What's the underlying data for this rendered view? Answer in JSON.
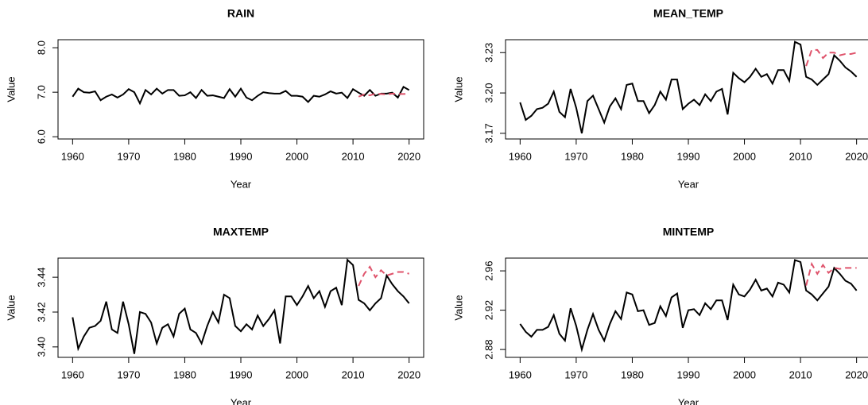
{
  "chart_data": [
    {
      "type": "line",
      "title": "RAIN",
      "xlabel": "Year",
      "ylabel": "Value",
      "x": [
        1960,
        1961,
        1962,
        1963,
        1964,
        1965,
        1966,
        1967,
        1968,
        1969,
        1970,
        1971,
        1972,
        1973,
        1974,
        1975,
        1976,
        1977,
        1978,
        1979,
        1980,
        1981,
        1982,
        1983,
        1984,
        1985,
        1986,
        1987,
        1988,
        1989,
        1990,
        1991,
        1992,
        1993,
        1994,
        1995,
        1996,
        1997,
        1998,
        1999,
        2000,
        2001,
        2002,
        2003,
        2004,
        2005,
        2006,
        2007,
        2008,
        2009,
        2010,
        2011,
        2012,
        2013,
        2014,
        2015,
        2016,
        2017,
        2018,
        2019,
        2020
      ],
      "xlim": [
        1957.4,
        2022.6
      ],
      "xticks": [
        1960,
        1970,
        1980,
        1990,
        2000,
        2010,
        2020
      ],
      "ylim": [
        5.95,
        8.18
      ],
      "yticks": [
        {
          "value": 6,
          "label": "6.0"
        },
        {
          "value": 7,
          "label": "7.0"
        },
        {
          "value": 8,
          "label": "8.0"
        }
      ],
      "series": [
        {
          "color": "#000000",
          "line_style": "solid",
          "values": [
            6.9,
            7.08,
            7.0,
            6.99,
            7.02,
            6.82,
            6.9,
            6.95,
            6.88,
            6.95,
            7.07,
            7.0,
            6.75,
            7.05,
            6.95,
            7.08,
            6.97,
            7.05,
            7.05,
            6.92,
            6.93,
            7.0,
            6.87,
            7.05,
            6.92,
            6.93,
            6.9,
            6.87,
            7.07,
            6.9,
            7.08,
            6.88,
            6.82,
            6.92,
            7.0,
            6.98,
            6.97,
            6.97,
            7.03,
            6.92,
            6.92,
            6.9,
            6.78,
            6.92,
            6.9,
            6.95,
            7.02,
            6.97,
            6.99,
            6.87,
            7.07,
            6.99,
            6.92,
            7.05,
            6.92,
            6.97,
            6.97,
            6.99,
            6.88,
            7.12,
            7.05
          ]
        },
        {
          "color": "#df536b",
          "line_style": "dashed",
          "values": [
            null,
            null,
            null,
            null,
            null,
            null,
            null,
            null,
            null,
            null,
            null,
            null,
            null,
            null,
            null,
            null,
            null,
            null,
            null,
            null,
            null,
            null,
            null,
            null,
            null,
            null,
            null,
            null,
            null,
            null,
            null,
            null,
            null,
            null,
            null,
            null,
            null,
            null,
            null,
            null,
            null,
            null,
            null,
            null,
            null,
            null,
            null,
            null,
            null,
            null,
            null,
            6.9,
            6.95,
            6.93,
            6.97,
            6.96,
            6.95,
            6.97,
            6.96,
            6.96,
            6.97
          ]
        }
      ]
    },
    {
      "type": "line",
      "title": "MEAN_TEMP",
      "xlabel": "Year",
      "ylabel": "Value",
      "x": [
        1960,
        1961,
        1962,
        1963,
        1964,
        1965,
        1966,
        1967,
        1968,
        1969,
        1970,
        1971,
        1972,
        1973,
        1974,
        1975,
        1976,
        1977,
        1978,
        1979,
        1980,
        1981,
        1982,
        1983,
        1984,
        1985,
        1986,
        1987,
        1988,
        1989,
        1990,
        1991,
        1992,
        1993,
        1994,
        1995,
        1996,
        1997,
        1998,
        1999,
        2000,
        2001,
        2002,
        2003,
        2004,
        2005,
        2006,
        2007,
        2008,
        2009,
        2010,
        2011,
        2012,
        2013,
        2014,
        2015,
        2016,
        2017,
        2018,
        2019,
        2020
      ],
      "xlim": [
        1957.4,
        2022.6
      ],
      "xticks": [
        1960,
        1970,
        1980,
        1990,
        2000,
        2010,
        2020
      ],
      "ylim": [
        3.1658,
        3.2396
      ],
      "yticks": [
        3.17,
        {
          "value": 3.2,
          "label": "3.20"
        },
        3.23
      ],
      "series": [
        {
          "color": "#000000",
          "line_style": "solid",
          "values": [
            3.193,
            3.18,
            3.183,
            3.188,
            3.189,
            3.192,
            3.201,
            3.186,
            3.182,
            3.203,
            3.189,
            3.17,
            3.194,
            3.198,
            3.188,
            3.178,
            3.19,
            3.196,
            3.188,
            3.206,
            3.207,
            3.194,
            3.194,
            3.185,
            3.191,
            3.201,
            3.195,
            3.21,
            3.21,
            3.188,
            3.192,
            3.195,
            3.191,
            3.199,
            3.194,
            3.201,
            3.203,
            3.184,
            3.215,
            3.211,
            3.208,
            3.212,
            3.218,
            3.212,
            3.214,
            3.207,
            3.217,
            3.217,
            3.209,
            3.238,
            3.236,
            3.212,
            3.21,
            3.206,
            3.21,
            3.214,
            3.228,
            3.224,
            3.219,
            3.216,
            3.212
          ]
        },
        {
          "color": "#df536b",
          "line_style": "dashed",
          "values": [
            null,
            null,
            null,
            null,
            null,
            null,
            null,
            null,
            null,
            null,
            null,
            null,
            null,
            null,
            null,
            null,
            null,
            null,
            null,
            null,
            null,
            null,
            null,
            null,
            null,
            null,
            null,
            null,
            null,
            null,
            null,
            null,
            null,
            null,
            null,
            null,
            null,
            null,
            null,
            null,
            null,
            null,
            null,
            null,
            null,
            null,
            null,
            null,
            null,
            null,
            null,
            3.22,
            3.232,
            3.232,
            3.226,
            3.23,
            3.23,
            3.228,
            3.229,
            3.229,
            3.23
          ]
        }
      ]
    },
    {
      "type": "line",
      "title": "MAXTEMP",
      "xlabel": "Year",
      "ylabel": "Value",
      "x": [
        1960,
        1961,
        1962,
        1963,
        1964,
        1965,
        1966,
        1967,
        1968,
        1969,
        1970,
        1971,
        1972,
        1973,
        1974,
        1975,
        1976,
        1977,
        1978,
        1979,
        1980,
        1981,
        1982,
        1983,
        1984,
        1985,
        1986,
        1987,
        1988,
        1989,
        1990,
        1991,
        1992,
        1993,
        1994,
        1995,
        1996,
        1997,
        1998,
        1999,
        2000,
        2001,
        2002,
        2003,
        2004,
        2005,
        2006,
        2007,
        2008,
        2009,
        2010,
        2011,
        2012,
        2013,
        2014,
        2015,
        2016,
        2017,
        2018,
        2019,
        2020
      ],
      "xlim": [
        1957.4,
        2022.6
      ],
      "xticks": [
        1960,
        1970,
        1980,
        1990,
        2000,
        2010,
        2020
      ],
      "ylim": [
        3.394,
        3.451
      ],
      "yticks": [
        {
          "value": 3.4,
          "label": "3.40"
        },
        3.42,
        3.44
      ],
      "series": [
        {
          "color": "#000000",
          "line_style": "solid",
          "values": [
            3.417,
            3.399,
            3.406,
            3.411,
            3.412,
            3.415,
            3.426,
            3.41,
            3.408,
            3.426,
            3.413,
            3.396,
            3.42,
            3.419,
            3.414,
            3.402,
            3.411,
            3.413,
            3.406,
            3.419,
            3.422,
            3.41,
            3.408,
            3.402,
            3.412,
            3.42,
            3.414,
            3.43,
            3.428,
            3.412,
            3.409,
            3.413,
            3.41,
            3.418,
            3.412,
            3.416,
            3.421,
            3.402,
            3.429,
            3.429,
            3.424,
            3.429,
            3.435,
            3.428,
            3.432,
            3.423,
            3.432,
            3.434,
            3.424,
            3.45,
            3.447,
            3.427,
            3.425,
            3.421,
            3.425,
            3.428,
            3.441,
            3.436,
            3.432,
            3.429,
            3.425
          ]
        },
        {
          "color": "#df536b",
          "line_style": "dashed",
          "values": [
            null,
            null,
            null,
            null,
            null,
            null,
            null,
            null,
            null,
            null,
            null,
            null,
            null,
            null,
            null,
            null,
            null,
            null,
            null,
            null,
            null,
            null,
            null,
            null,
            null,
            null,
            null,
            null,
            null,
            null,
            null,
            null,
            null,
            null,
            null,
            null,
            null,
            null,
            null,
            null,
            null,
            null,
            null,
            null,
            null,
            null,
            null,
            null,
            null,
            null,
            null,
            3.435,
            3.442,
            3.446,
            3.44,
            3.444,
            3.441,
            3.442,
            3.443,
            3.443,
            3.442
          ]
        }
      ]
    },
    {
      "type": "line",
      "title": "MINTEMP",
      "xlabel": "Year",
      "ylabel": "Value",
      "x": [
        1960,
        1961,
        1962,
        1963,
        1964,
        1965,
        1966,
        1967,
        1968,
        1969,
        1970,
        1971,
        1972,
        1973,
        1974,
        1975,
        1976,
        1977,
        1978,
        1979,
        1980,
        1981,
        1982,
        1983,
        1984,
        1985,
        1986,
        1987,
        1988,
        1989,
        1990,
        1991,
        1992,
        1993,
        1994,
        1995,
        1996,
        1997,
        1998,
        1999,
        2000,
        2001,
        2002,
        2003,
        2004,
        2005,
        2006,
        2007,
        2008,
        2009,
        2010,
        2011,
        2012,
        2013,
        2014,
        2015,
        2016,
        2017,
        2018,
        2019,
        2020
      ],
      "xlim": [
        1957.4,
        2022.6
      ],
      "xticks": [
        1960,
        1970,
        1980,
        1990,
        2000,
        2010,
        2020
      ],
      "ylim": [
        2.872,
        2.973
      ],
      "yticks": [
        2.88,
        2.92,
        2.96
      ],
      "series": [
        {
          "color": "#000000",
          "line_style": "solid",
          "values": [
            2.906,
            2.898,
            2.893,
            2.9,
            2.9,
            2.903,
            2.915,
            2.896,
            2.889,
            2.922,
            2.904,
            2.88,
            2.9,
            2.916,
            2.9,
            2.889,
            2.906,
            2.919,
            2.911,
            2.938,
            2.936,
            2.919,
            2.92,
            2.905,
            2.907,
            2.924,
            2.914,
            2.933,
            2.937,
            2.902,
            2.92,
            2.921,
            2.915,
            2.927,
            2.921,
            2.93,
            2.93,
            2.91,
            2.946,
            2.936,
            2.934,
            2.941,
            2.951,
            2.94,
            2.942,
            2.934,
            2.948,
            2.946,
            2.938,
            2.971,
            2.969,
            2.94,
            2.936,
            2.93,
            2.937,
            2.944,
            2.963,
            2.957,
            2.95,
            2.947,
            2.94
          ]
        },
        {
          "color": "#df536b",
          "line_style": "dashed",
          "values": [
            null,
            null,
            null,
            null,
            null,
            null,
            null,
            null,
            null,
            null,
            null,
            null,
            null,
            null,
            null,
            null,
            null,
            null,
            null,
            null,
            null,
            null,
            null,
            null,
            null,
            null,
            null,
            null,
            null,
            null,
            null,
            null,
            null,
            null,
            null,
            null,
            null,
            null,
            null,
            null,
            null,
            null,
            null,
            null,
            null,
            null,
            null,
            null,
            null,
            null,
            null,
            2.945,
            2.967,
            2.957,
            2.966,
            2.958,
            2.963,
            2.962,
            2.963,
            2.963,
            2.963
          ]
        }
      ]
    }
  ]
}
